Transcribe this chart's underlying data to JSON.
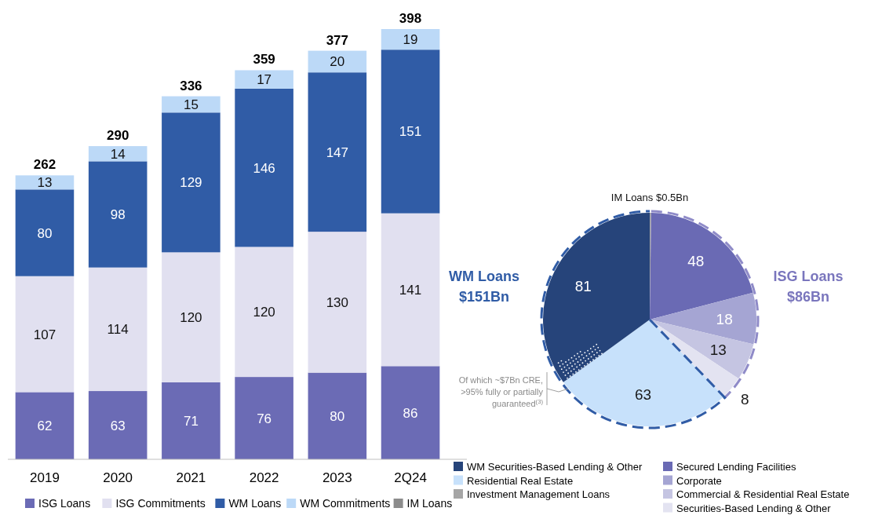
{
  "chart_data": [
    {
      "type": "bar",
      "stacked": true,
      "categories": [
        "2019",
        "2020",
        "2021",
        "2022",
        "2023",
        "2Q24"
      ],
      "series": [
        {
          "name": "ISG Loans",
          "color": "#6b6bb5",
          "values": [
            62,
            63,
            71,
            76,
            80,
            86
          ]
        },
        {
          "name": "ISG Commitments",
          "color": "#e1e0f0",
          "values": [
            107,
            114,
            120,
            120,
            130,
            141
          ]
        },
        {
          "name": "WM Loans",
          "color": "#305ca6",
          "values": [
            80,
            98,
            129,
            146,
            147,
            151
          ]
        },
        {
          "name": "WM Commitments",
          "color": "#bcd9f7",
          "values": [
            13,
            14,
            15,
            17,
            20,
            19
          ]
        },
        {
          "name": "IM Loans",
          "color": "#8c8c8c",
          "values": [
            null,
            null,
            null,
            null,
            null,
            null
          ]
        }
      ],
      "data_labels": true,
      "totals": [
        "262",
        "290",
        "336",
        "359",
        "377",
        "398"
      ],
      "legend": "bottom"
    },
    {
      "type": "pie",
      "categories": [
        "Investment Management Loans",
        "Secured Lending Facilities",
        "Corporate",
        "Commercial & Residential Real Estate",
        "Securities-Based Lending & Other",
        "Residential Real Estate",
        "WM Securities-Based Lending & Other"
      ],
      "values": [
        0.5,
        48,
        18,
        13,
        8,
        63,
        81
      ],
      "colors": [
        "#a6a6a6",
        "#6a6ab4",
        "#a5a5d3",
        "#c5c5e2",
        "#e3e3f1",
        "#c7e1fb",
        "#26447a"
      ],
      "value_labels": [
        null,
        "48",
        "18",
        "13",
        "8",
        "63",
        "81"
      ],
      "annotations": [
        "IM Loans $0.5Bn",
        "WM Loans $151Bn",
        "ISG Loans $86Bn",
        "Of which ~$7Bn CRE, >95% fully or partially guaranteed$^{(3)}$"
      ],
      "legend": "bottom"
    }
  ]
}
